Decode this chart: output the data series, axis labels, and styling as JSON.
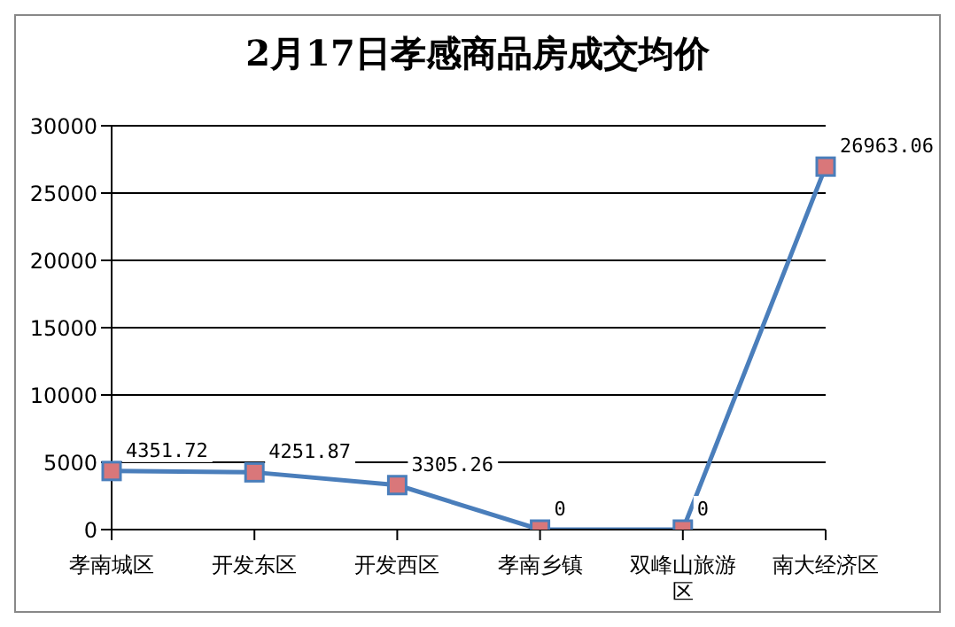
{
  "chart_data": {
    "type": "line",
    "title": "2月17日孝感商品房成交均价",
    "categories": [
      "孝南城区",
      "开发东区",
      "开发西区",
      "孝南乡镇",
      "双峰山旅游区",
      "南大经济区"
    ],
    "series": [
      {
        "color": "#4a7ebb",
        "values": [
          4351.72,
          4251.87,
          3305.26,
          0,
          0,
          26963.06
        ]
      }
    ],
    "ylim": [
      0,
      30000
    ],
    "yticks": [
      0,
      5000,
      10000,
      15000,
      20000,
      25000,
      30000
    ],
    "grid": "y",
    "marker": "square",
    "line_style": "solid",
    "data_labels": true
  }
}
